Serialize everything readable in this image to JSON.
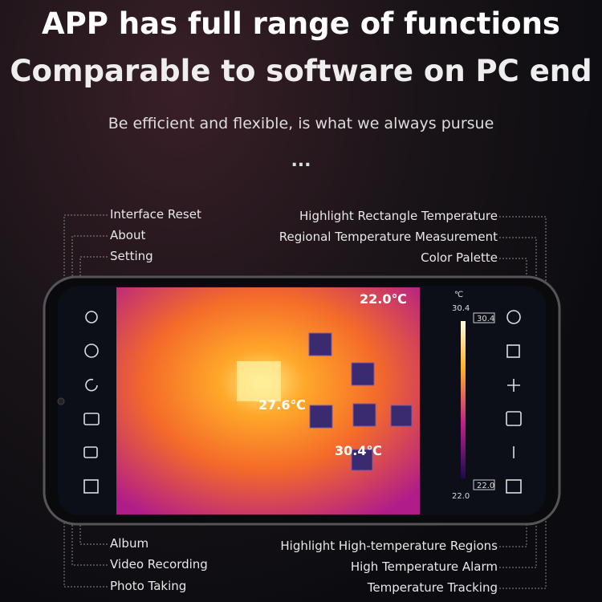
{
  "header": {
    "title_lines": [
      "APP has full range of functions",
      "Comparable to software on PC end"
    ],
    "subtitle": "Be efficient and flexible, is what we always pursue",
    "ellipsis": "..."
  },
  "callouts": {
    "top_left": [
      "Interface Reset",
      "About",
      "Setting"
    ],
    "top_right": [
      "Highlight Rectangle Temperature",
      "Regional Temperature Measurement",
      "Color Palette"
    ],
    "bottom_left": [
      "Album",
      "Video Recording",
      "Photo Taking"
    ],
    "bottom_right": [
      "Highlight High-temperature Regions",
      "High Temperature Alarm",
      "Temperature Tracking"
    ]
  },
  "thermal_view": {
    "markers": [
      "22.0℃",
      "27.6℃",
      "30.4℃"
    ],
    "scale": {
      "unit": "℃",
      "max": "30.4",
      "max_box": "30.4",
      "min_box": "22.0",
      "min": "22.0"
    }
  }
}
